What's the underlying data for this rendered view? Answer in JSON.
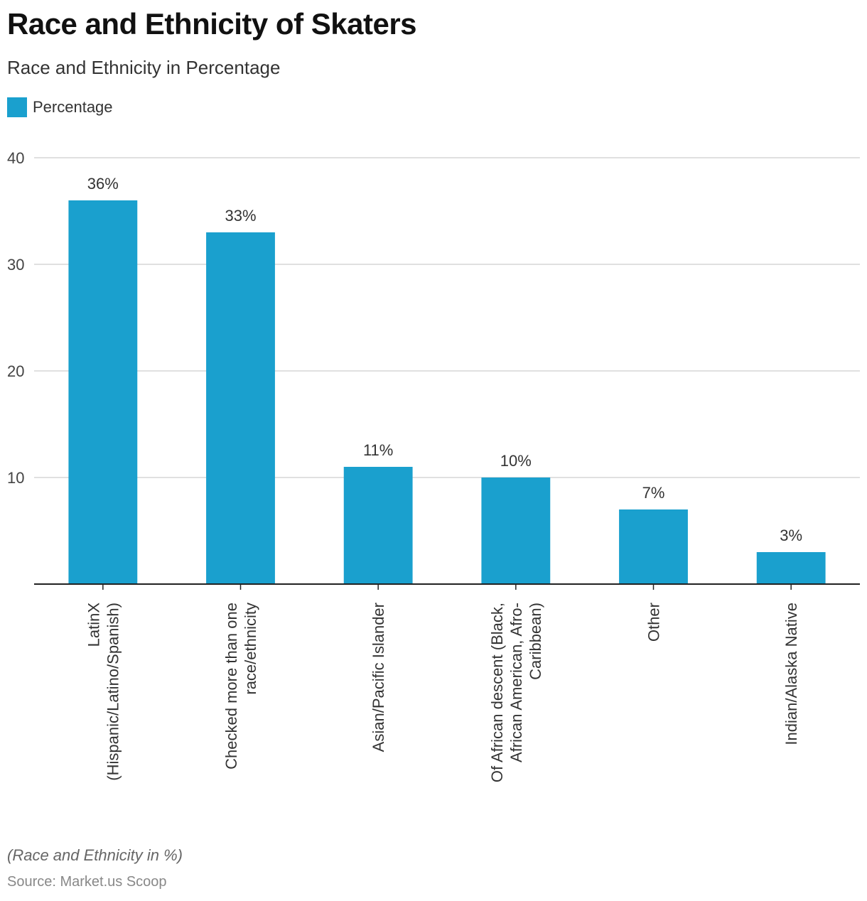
{
  "title": "Race and Ethnicity of Skaters",
  "subtitle": "Race and Ethnicity in Percentage",
  "legend": {
    "label": "Percentage"
  },
  "footnote": "(Race and Ethnicity in %)",
  "source": "Source: Market.us Scoop",
  "colors": {
    "bar": "#1aa0ce",
    "grid": "#d6d6d6",
    "axis": "#222222",
    "text": "#333333"
  },
  "chart_data": {
    "type": "bar",
    "categories": [
      [
        "LatinX",
        "(Hispanic/Latino/Spanish)"
      ],
      [
        "Checked more than one",
        "race/ethnicity"
      ],
      [
        "Asian/Pacific Islander"
      ],
      [
        "Of African descent (Black,",
        "African American, Afro-",
        "Caribbean)"
      ],
      [
        "Other"
      ],
      [
        "Indian/Alaska Native"
      ]
    ],
    "series": [
      {
        "name": "Percentage",
        "values": [
          36,
          33,
          11,
          10,
          7,
          3
        ]
      }
    ],
    "data_labels": [
      "36%",
      "33%",
      "11%",
      "10%",
      "7%",
      "3%"
    ],
    "ylim": [
      0,
      40
    ],
    "yticks": [
      10,
      20,
      30,
      40
    ],
    "grid": true,
    "legend_position": "top-left"
  }
}
